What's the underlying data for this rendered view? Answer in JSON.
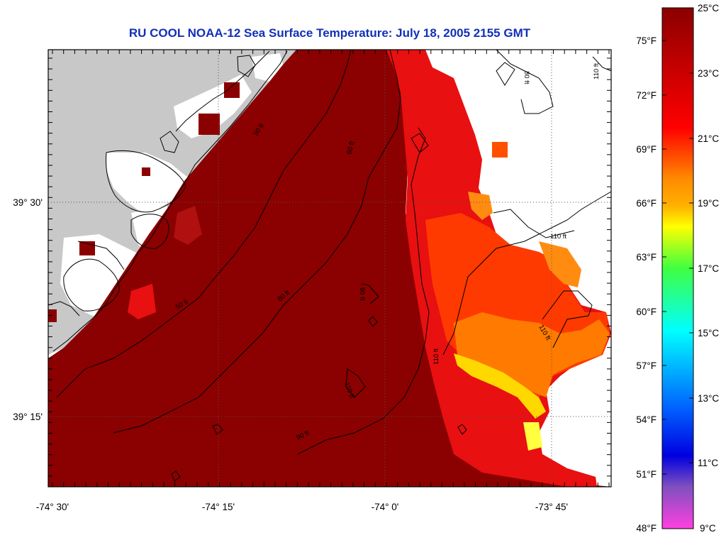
{
  "title": "RU COOL  NOAA-12  Sea Surface Temperature:  July 18, 2005 2155 GMT",
  "map": {
    "lon_ticks": [
      "-74° 30'",
      "-74° 15'",
      "-74° 0'",
      "-73° 45'"
    ],
    "lat_ticks": [
      "39° 30'",
      "39° 15'"
    ],
    "contour_labels": [
      "50 ft",
      "60 ft",
      "80 ft",
      "90 ft",
      "110 ft"
    ],
    "colors": {
      "land": "#c8c8c8",
      "no_data": "#ffffff",
      "water_warmest": "#8b0000"
    }
  },
  "colorbar": {
    "fahrenheit": [
      "75°F",
      "72°F",
      "69°F",
      "66°F",
      "63°F",
      "60°F",
      "57°F",
      "54°F",
      "51°F",
      "48°F"
    ],
    "celsius": [
      "25°C",
      "23°C",
      "21°C",
      "19°C",
      "17°C",
      "15°C",
      "13°C",
      "11°C",
      "9°C"
    ],
    "stops": [
      "#8b0000",
      "#ff0000",
      "#ff8c00",
      "#ffff00",
      "#20ff60",
      "#00ffff",
      "#0060ff",
      "#0000e0",
      "#8040c0",
      "#ff40e0"
    ]
  }
}
